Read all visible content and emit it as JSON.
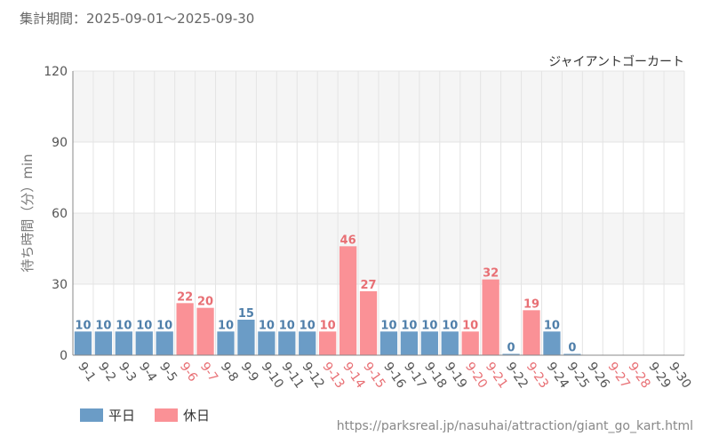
{
  "header": {
    "period_label": "集計期間：2025-09-01～2025-09-30"
  },
  "footer": {
    "source_url": "https://parksreal.jp/nasuhai/attraction/giant_go_kart.html"
  },
  "colors": {
    "weekday": "#6b9cc6",
    "holiday": "#fa9196",
    "weekday_text": "#4f7faa",
    "holiday_text": "#e86f74"
  },
  "chart_data": {
    "type": "bar",
    "title": "ジャイアントゴーカート",
    "ylabel": "待ち時間（分）min",
    "xlabel": "",
    "ylim": [
      0,
      120
    ],
    "yticks": [
      0,
      30,
      60,
      90,
      120
    ],
    "categories": [
      "9-1",
      "9-2",
      "9-3",
      "9-4",
      "9-5",
      "9-6",
      "9-7",
      "9-8",
      "9-9",
      "9-10",
      "9-11",
      "9-12",
      "9-13",
      "9-14",
      "9-15",
      "9-16",
      "9-17",
      "9-18",
      "9-19",
      "9-20",
      "9-21",
      "9-22",
      "9-23",
      "9-24",
      "9-25",
      "9-26",
      "9-27",
      "9-28",
      "9-29",
      "9-30"
    ],
    "values": [
      10,
      10,
      10,
      10,
      10,
      22,
      20,
      10,
      15,
      10,
      10,
      10,
      10,
      46,
      27,
      10,
      10,
      10,
      10,
      10,
      32,
      0,
      19,
      10,
      0,
      null,
      null,
      null,
      null,
      null
    ],
    "day_type": [
      "weekday",
      "weekday",
      "weekday",
      "weekday",
      "weekday",
      "holiday",
      "holiday",
      "weekday",
      "weekday",
      "weekday",
      "weekday",
      "weekday",
      "holiday",
      "holiday",
      "holiday",
      "weekday",
      "weekday",
      "weekday",
      "weekday",
      "holiday",
      "holiday",
      "weekday",
      "holiday",
      "weekday",
      "weekday",
      "weekday",
      "holiday",
      "holiday",
      "weekday",
      "weekday"
    ],
    "grid": true,
    "legend_position": "bottom-left",
    "legend": [
      {
        "key": "weekday",
        "label": "平日"
      },
      {
        "key": "holiday",
        "label": "休日"
      }
    ]
  }
}
